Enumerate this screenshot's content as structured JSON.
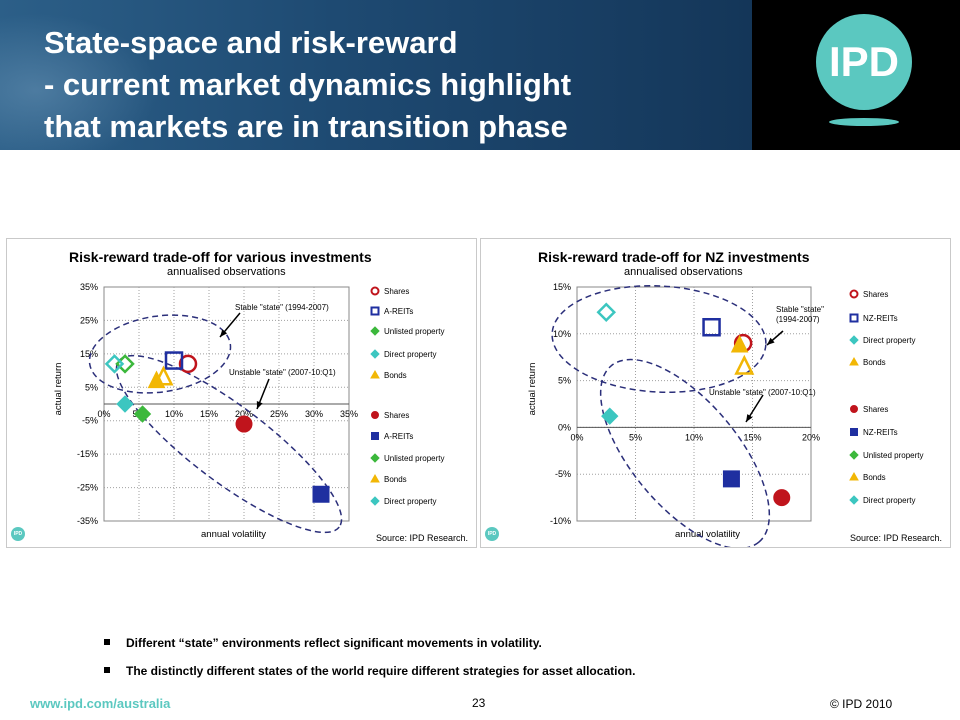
{
  "slide": {
    "title_line1": "State-space and risk-reward",
    "title_line2": "- current market dynamics highlight",
    "title_line3": "that markets are in transition phase",
    "logo_text": "IPD",
    "bullets": [
      "Different “state” environments reflect significant movements in volatility.",
      "The distinctly different states of the world require different strategies for asset allocation."
    ],
    "footer_url": "www.ipd.com/australia",
    "page_number": "23",
    "copyright": "© IPD 2010"
  },
  "colors": {
    "shares": "#c0141c",
    "reits": "#1f2fa0",
    "unlisted": "#3cb83c",
    "direct": "#3cc6c0",
    "bonds": "#f2b705",
    "ellipse": "#2b2f7a",
    "teal": "#5bc8c0"
  },
  "chart_data": [
    {
      "type": "scatter",
      "title": "Risk-reward trade-off for various investments",
      "subtitle": "annualised observations",
      "xlabel": "annual volatility",
      "ylabel": "actual return",
      "xlim": [
        0,
        35
      ],
      "ylim": [
        -35,
        35
      ],
      "xticks": [
        "0%",
        "5%",
        "10%",
        "15%",
        "20%",
        "25%",
        "30%",
        "35%"
      ],
      "yticks": [
        "35%",
        "25%",
        "15%",
        "5%",
        "-5%",
        "-15%",
        "-25%",
        "-35%"
      ],
      "grid": true,
      "annotations": [
        "Stable \"state\" (1994-2007)",
        "Unstable \"state\" (2007-10:Q1)"
      ],
      "source": "Source: IPD Research.",
      "legend_stable": [
        "Shares",
        "A-REITs",
        "Unlisted property",
        "Direct property",
        "Bonds"
      ],
      "legend_unstable": [
        "Shares",
        "A-REITs",
        "Unlisted property",
        "Bonds",
        "Direct property"
      ],
      "series": [
        {
          "name": "Shares",
          "state": "stable",
          "x": 12,
          "y": 12
        },
        {
          "name": "A-REITs",
          "state": "stable",
          "x": 10,
          "y": 13
        },
        {
          "name": "Unlisted property",
          "state": "stable",
          "x": 3,
          "y": 12
        },
        {
          "name": "Direct property",
          "state": "stable",
          "x": 1.5,
          "y": 12
        },
        {
          "name": "Bonds",
          "state": "stable",
          "x": 8.5,
          "y": 8
        },
        {
          "name": "Shares",
          "state": "unstable",
          "x": 20,
          "y": -6
        },
        {
          "name": "A-REITs",
          "state": "unstable",
          "x": 31,
          "y": -27
        },
        {
          "name": "Unlisted property",
          "state": "unstable",
          "x": 5.5,
          "y": -3
        },
        {
          "name": "Bonds",
          "state": "unstable",
          "x": 7.5,
          "y": 7
        },
        {
          "name": "Direct property",
          "state": "unstable",
          "x": 3,
          "y": 0
        }
      ]
    },
    {
      "type": "scatter",
      "title": "Risk-reward trade-off for NZ investments",
      "subtitle": "annualised observations",
      "xlabel": "annual volatility",
      "ylabel": "actual return",
      "xlim": [
        0,
        20
      ],
      "ylim": [
        -10,
        15
      ],
      "xticks": [
        "0%",
        "5%",
        "10%",
        "15%",
        "20%"
      ],
      "yticks": [
        "15%",
        "10%",
        "5%",
        "0%",
        "-5%",
        "-10%"
      ],
      "grid": true,
      "annotations": [
        "Stable \"state\" (1994-2007)",
        "Unstable \"state\" (2007-10:Q1)"
      ],
      "source": "Source: IPD Research.",
      "legend_stable": [
        "Shares",
        "NZ-REITs",
        "Direct property",
        "Bonds"
      ],
      "legend_unstable": [
        "Shares",
        "NZ-REITs",
        "Unlisted property",
        "Bonds",
        "Direct property"
      ],
      "series": [
        {
          "name": "Shares",
          "state": "stable",
          "x": 14.2,
          "y": 9
        },
        {
          "name": "NZ-REITs",
          "state": "stable",
          "x": 11.5,
          "y": 10.7
        },
        {
          "name": "Direct property",
          "state": "stable",
          "x": 2.5,
          "y": 12.3
        },
        {
          "name": "Bonds",
          "state": "stable",
          "x": 14.3,
          "y": 6.5
        },
        {
          "name": "Shares",
          "state": "unstable",
          "x": 17.5,
          "y": -7.5
        },
        {
          "name": "NZ-REITs",
          "state": "unstable",
          "x": 13.2,
          "y": -5.5
        },
        {
          "name": "Bonds",
          "state": "unstable",
          "x": 13.9,
          "y": 8.8
        },
        {
          "name": "Direct property",
          "state": "unstable",
          "x": 2.8,
          "y": 1.2
        }
      ]
    }
  ]
}
